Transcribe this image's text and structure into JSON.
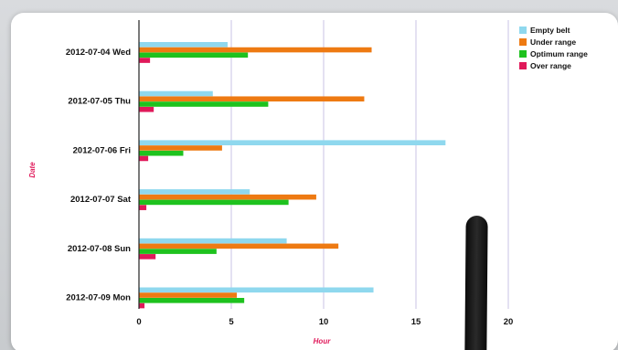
{
  "chart_data": {
    "type": "bar",
    "orientation": "horizontal",
    "title": "",
    "xlabel": "Hour",
    "ylabel": "Date",
    "xlim": [
      0,
      20
    ],
    "xticks": [
      "0",
      "5",
      "10",
      "15",
      "20"
    ],
    "grid": true,
    "legend_position": "top-right",
    "categories": [
      "2012-07-04 Wed",
      "2012-07-05 Thu",
      "2012-07-06 Fri",
      "2012-07-07 Sat",
      "2012-07-08 Sun",
      "2012-07-09 Mon"
    ],
    "series": [
      {
        "name": "Empty belt",
        "color": "#8fd8ee",
        "values": [
          4.8,
          4.0,
          16.6,
          6.0,
          8.0,
          12.7
        ]
      },
      {
        "name": "Under range",
        "color": "#ee7a12",
        "values": [
          12.6,
          12.2,
          4.5,
          9.6,
          10.8,
          5.3
        ]
      },
      {
        "name": "Optimum range",
        "color": "#1ec21e",
        "values": [
          5.9,
          7.0,
          2.4,
          8.1,
          4.2,
          5.7
        ]
      },
      {
        "name": "Over range",
        "color": "#e0195a",
        "values": [
          0.6,
          0.8,
          0.5,
          0.4,
          0.9,
          0.3
        ]
      }
    ]
  }
}
